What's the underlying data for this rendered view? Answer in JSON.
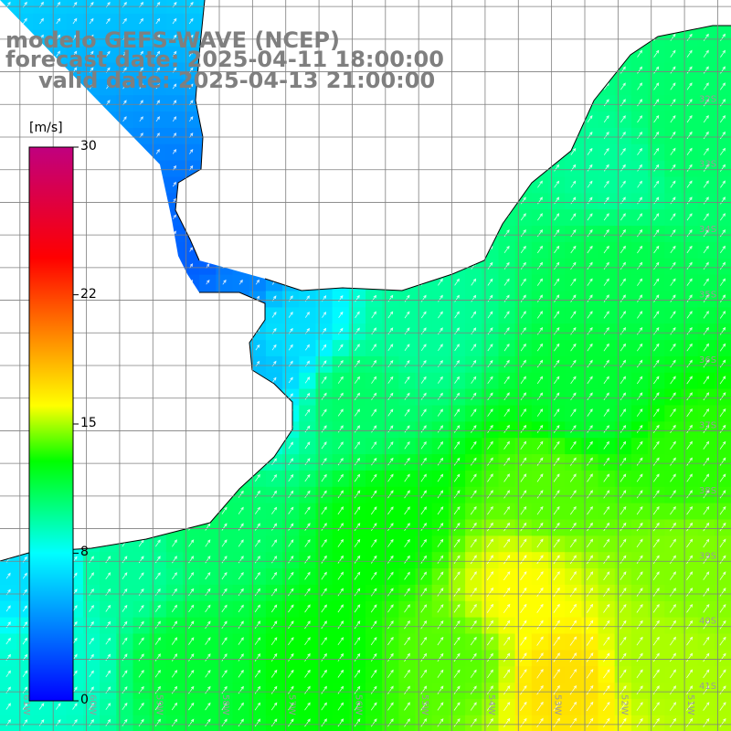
{
  "title": {
    "model": "modelo GEFS-WAVE (NCEP)",
    "forecast": "forecast date: 2025-04-11 18:00:00",
    "valid": "valid date: 2025-04-13 21:00:00"
  },
  "colorbar": {
    "unit": "[m/s]",
    "min": 0,
    "max": 30,
    "ticks": [
      {
        "value": 30,
        "label": "30"
      },
      {
        "value": 22,
        "label": "22"
      },
      {
        "value": 15,
        "label": "15"
      },
      {
        "value": 8,
        "label": "8"
      },
      {
        "value": 0,
        "label": "0"
      }
    ],
    "color_stops": [
      {
        "value": 0,
        "color": "#0000ff"
      },
      {
        "value": 8,
        "color": "#00ffff"
      },
      {
        "value": 13,
        "color": "#00ff00"
      },
      {
        "value": 16,
        "color": "#ffff00"
      },
      {
        "value": 20,
        "color": "#ff8000"
      },
      {
        "value": 24,
        "color": "#ff0000"
      },
      {
        "value": 30,
        "color": "#c0007f"
      }
    ]
  },
  "map": {
    "lon_range": [
      -61.3,
      -50.3
    ],
    "lat_range": [
      -41.6,
      -30.4
    ],
    "grid_color": "#7f7f7f",
    "land_color": "#ffffff",
    "coast_color": "#000000",
    "lon_labels": [
      {
        "lon": -61,
        "label": "61W"
      },
      {
        "lon": -60,
        "label": "60W"
      },
      {
        "lon": -59,
        "label": "59W"
      },
      {
        "lon": -58,
        "label": "58W"
      },
      {
        "lon": -57,
        "label": "57W"
      },
      {
        "lon": -56,
        "label": "56W"
      },
      {
        "lon": -55,
        "label": "55W"
      },
      {
        "lon": -54,
        "label": "54W"
      },
      {
        "lon": -53,
        "label": "53W"
      },
      {
        "lon": -52,
        "label": "52W"
      },
      {
        "lon": -51,
        "label": "51W"
      }
    ],
    "lat_labels": [
      {
        "lat": -32,
        "label": "32S"
      },
      {
        "lat": -33,
        "label": "33S"
      },
      {
        "lat": -34,
        "label": "34S"
      },
      {
        "lat": -35,
        "label": "35S"
      },
      {
        "lat": -36,
        "label": "36S"
      },
      {
        "lat": -37,
        "label": "37S"
      },
      {
        "lat": -38,
        "label": "38S"
      },
      {
        "lat": -39,
        "label": "39S"
      },
      {
        "lat": -40,
        "label": "40S"
      },
      {
        "lat": -41,
        "label": "41S"
      }
    ],
    "wind_field": {
      "anchors": [
        {
          "lon": -60.5,
          "lat": -40.5,
          "speed": 9
        },
        {
          "lon": -58.5,
          "lat": -40.5,
          "speed": 12
        },
        {
          "lon": -56.5,
          "lat": -40.5,
          "speed": 13
        },
        {
          "lon": -54.5,
          "lat": -40.5,
          "speed": 14
        },
        {
          "lon": -52.8,
          "lat": -40.8,
          "speed": 17
        },
        {
          "lon": -51.5,
          "lat": -40.5,
          "speed": 15
        },
        {
          "lon": -53.5,
          "lat": -39.5,
          "speed": 16
        },
        {
          "lon": -51.0,
          "lat": -39.0,
          "speed": 14.5
        },
        {
          "lon": -55.5,
          "lat": -38.5,
          "speed": 13
        },
        {
          "lon": -53.0,
          "lat": -37.8,
          "speed": 14
        },
        {
          "lon": -51.0,
          "lat": -37.5,
          "speed": 13.5
        },
        {
          "lon": -56.0,
          "lat": -36.5,
          "speed": 11
        },
        {
          "lon": -52.5,
          "lat": -36.5,
          "speed": 12
        },
        {
          "lon": -57.0,
          "lat": -35.5,
          "speed": 7
        },
        {
          "lon": -55.0,
          "lat": -35.3,
          "speed": 10
        },
        {
          "lon": -52.0,
          "lat": -34.5,
          "speed": 11.5
        },
        {
          "lon": -51.0,
          "lat": -32.5,
          "speed": 11
        },
        {
          "lon": -52.0,
          "lat": -33.0,
          "speed": 10
        },
        {
          "lon": -57.8,
          "lat": -34.7,
          "speed": 4
        },
        {
          "lon": -58.3,
          "lat": -34.4,
          "speed": 3
        },
        {
          "lon": -57.5,
          "lat": -36.0,
          "speed": 6
        },
        {
          "lon": -60.8,
          "lat": -39.2,
          "speed": 7
        },
        {
          "lon": -59.5,
          "lat": -39.2,
          "speed": 10
        },
        {
          "lon": -58.0,
          "lat": -38.5,
          "speed": 11
        }
      ],
      "direction_deg": 35
    }
  }
}
